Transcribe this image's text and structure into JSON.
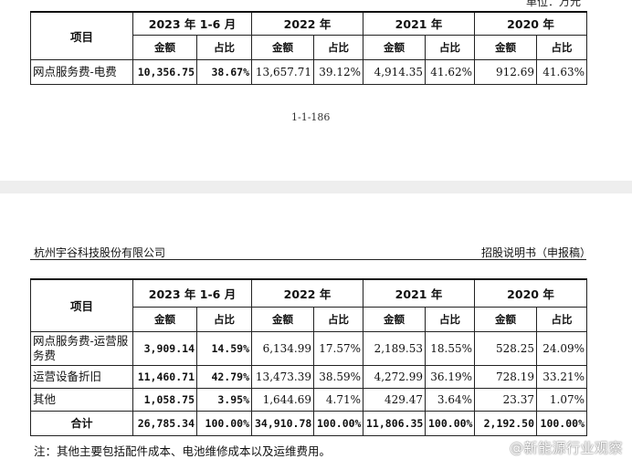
{
  "unit_label": "单位：万元",
  "page_number": "1-1-186",
  "header": {
    "company": "杭州宇谷科技股份有限公司",
    "document": "招股说明书（申报稿）"
  },
  "headers": {
    "item": "项目",
    "periods": [
      "2023 年 1-6 月",
      "2022 年",
      "2021 年",
      "2020 年"
    ],
    "amount": "金额",
    "ratio": "占比"
  },
  "table1": {
    "rows": [
      {
        "label": "网点服务费-电费",
        "cells": [
          "10,356.75",
          "38.67%",
          "13,657.71",
          "39.12%",
          "4,914.35",
          "41.62%",
          "912.69",
          "41.63%"
        ]
      }
    ]
  },
  "table2": {
    "rows": [
      {
        "label": "网点服务费-运营服务费",
        "cells": [
          "3,909.14",
          "14.59%",
          "6,134.99",
          "17.57%",
          "2,189.53",
          "18.55%",
          "528.25",
          "24.09%"
        ]
      },
      {
        "label": "运营设备折旧",
        "cells": [
          "11,460.71",
          "42.79%",
          "13,473.39",
          "38.59%",
          "4,272.99",
          "36.19%",
          "728.19",
          "33.21%"
        ]
      },
      {
        "label": "其他",
        "cells": [
          "1,058.75",
          "3.95%",
          "1,644.69",
          "4.71%",
          "429.47",
          "3.64%",
          "23.37",
          "1.07%"
        ]
      }
    ],
    "total": {
      "label": "合计",
      "cells": [
        "26,785.34",
        "100.00%",
        "34,910.78",
        "100.00%",
        "11,806.35",
        "100.00%",
        "2,192.50",
        "100.00%"
      ]
    }
  },
  "note": "注：其他主要包括配件成本、电池维修成本以及运维费用。",
  "watermark": "@新能源行业观察"
}
